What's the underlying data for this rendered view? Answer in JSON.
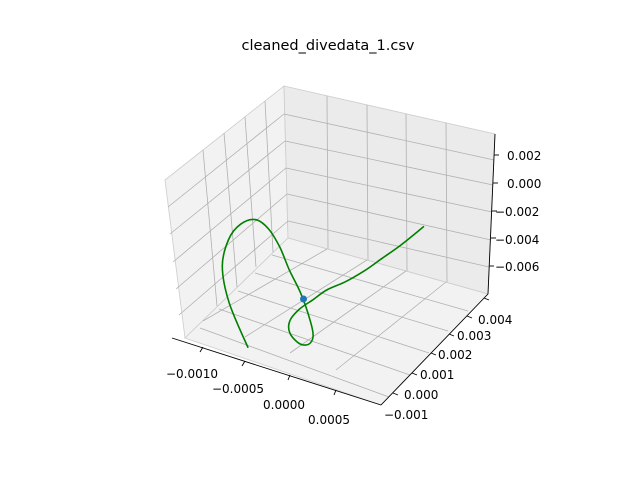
{
  "chart_data": {
    "type": "line3d",
    "title": "cleaned_divedata_1.csv",
    "xlabel": "",
    "ylabel": "",
    "zlabel": "",
    "grid": true,
    "x_ticks": [
      "−0.0010",
      "−0.0005",
      "0.0000",
      "0.0005"
    ],
    "y_ticks": [
      "−0.001",
      "0.000",
      "0.001",
      "0.002",
      "0.003",
      "0.004"
    ],
    "z_ticks": [
      "0.002",
      "0.000",
      "−0.002",
      "−0.004",
      "−0.006"
    ],
    "xlim": [
      -0.00125,
      0.00085
    ],
    "ylim": [
      -0.0013,
      0.0045
    ],
    "zlim": [
      -0.0073,
      0.003
    ],
    "series": [
      {
        "color": "#008000",
        "style": "line",
        "points": [
          [
            -0.00065,
            -0.0009,
            -0.0072
          ],
          [
            -0.00085,
            -0.0009,
            -0.0056
          ],
          [
            -0.00092,
            -0.0009,
            -0.0042
          ],
          [
            -0.00085,
            -0.0009,
            -0.003
          ],
          [
            -0.00072,
            -0.0009,
            -0.0022
          ],
          [
            -0.00056,
            -0.0009,
            -0.0018
          ],
          [
            -0.00042,
            -0.0009,
            -0.002
          ],
          [
            -0.0003,
            -0.0009,
            -0.0026
          ],
          [
            -0.0002,
            -0.0009,
            -0.0034
          ],
          [
            -8e-05,
            -0.0009,
            -0.0042
          ],
          [
            2e-05,
            -0.0009,
            -0.0052
          ],
          [
            5e-05,
            -0.0009,
            -0.0058
          ],
          [
            0.0,
            -0.0009,
            -0.0062
          ],
          [
            -0.0001,
            -0.0009,
            -0.0063
          ],
          [
            -0.0002,
            -0.0009,
            -0.006
          ],
          [
            -0.0002,
            -0.0009,
            -0.0055
          ],
          [
            -0.0001,
            -0.0009,
            -0.0049
          ],
          [
            5e-05,
            -0.0009,
            -0.0043
          ],
          [
            0.0002,
            -0.0009,
            -0.0037
          ],
          [
            0.0004,
            -0.0009,
            -0.0031
          ],
          [
            0.0006,
            -0.0009,
            -0.0024
          ],
          [
            0.0008,
            -0.0009,
            -0.0016
          ],
          [
            0.001,
            -0.0009,
            -0.0008
          ],
          [
            0.00125,
            -0.0009,
            0.0003
          ]
        ]
      },
      {
        "color": "#1f77b4",
        "style": "marker",
        "points": [
          [
            -5e-05,
            -0.0009,
            -0.0044
          ]
        ]
      }
    ]
  }
}
